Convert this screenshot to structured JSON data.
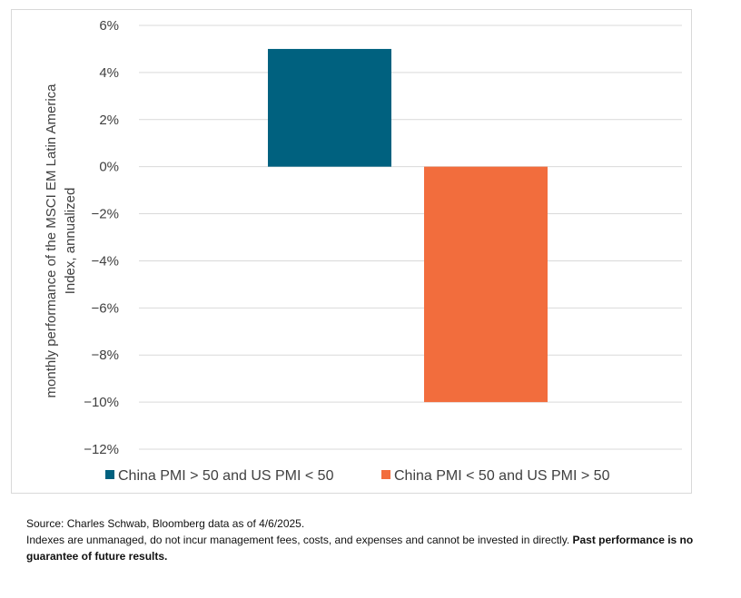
{
  "chart_data": {
    "type": "bar",
    "title": "",
    "ylabel_lines": [
      "monthly performance of the MSCI EM Latin America",
      "Index, annualized"
    ],
    "xlabel": "",
    "ylim": [
      -12,
      6
    ],
    "yticks": [
      6,
      4,
      2,
      0,
      -2,
      -4,
      -6,
      -8,
      -10,
      -12
    ],
    "ytick_labels": [
      "6%",
      "4%",
      "2%",
      "0%",
      "−2%",
      "−4%",
      "−6%",
      "−8%",
      "−10%",
      "−12%"
    ],
    "grid": true,
    "legend_position": "bottom",
    "series": [
      {
        "name": "China PMI > 50 and US PMI < 50",
        "value": 5.0,
        "color": "#00617f"
      },
      {
        "name": "China PMI < 50 and US PMI > 50",
        "value": -10.0,
        "color": "#f26d3d"
      }
    ]
  },
  "footnote": {
    "source": "Source: Charles Schwab, Bloomberg data as of 4/6/2025.",
    "disclaimer": "Indexes are unmanaged, do not incur management fees, costs, and expenses and cannot be invested in directly.",
    "disclaimer_bold": "Past performance is no guarantee of future results."
  }
}
